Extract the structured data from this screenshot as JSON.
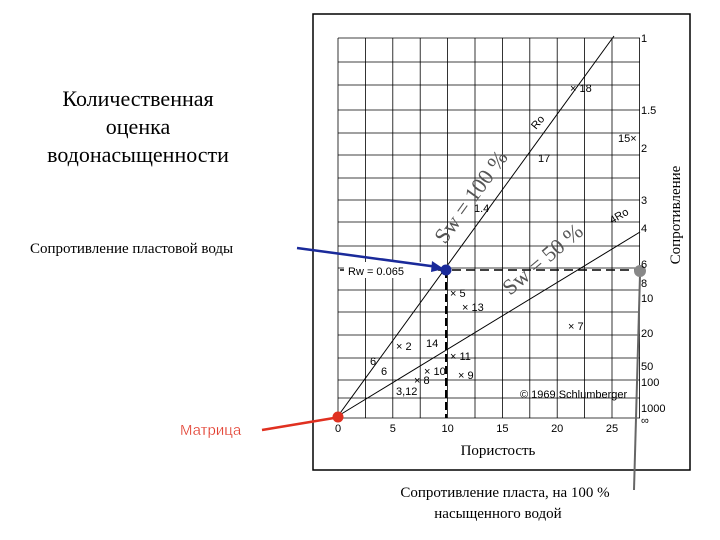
{
  "title": [
    "Количественная",
    "оценка",
    "водонасыщенности"
  ],
  "labels": {
    "rw_callout": "Сопротивление пластовой воды",
    "matrix": "Матрица",
    "x_axis": "Пористость",
    "y_axis": "Сопротивление",
    "bottom": [
      "Сопротивление пласта, на 100 %",
      "насыщенного водой"
    ]
  },
  "plot": {
    "x_ticks": [
      "0",
      "5",
      "10",
      "15",
      "20",
      "25"
    ],
    "y_ticks": [
      "1",
      "1.5",
      "2",
      "3",
      "4",
      "6",
      "8",
      "10",
      "20",
      "50",
      "100",
      "1000",
      "∞"
    ],
    "lines": [
      "Sw = 100 %",
      "Sw = 50 %"
    ],
    "rw": "Rw = 0.065",
    "ro": "Ro",
    "ro4": "4Ro",
    "ratio": "1.4",
    "copyright": "© 1969 Schlumberger",
    "points": [
      "× 18",
      "17",
      "15×",
      "× 5",
      "× 13",
      "× 7",
      "× 2",
      "14",
      "× 11",
      "× 10",
      "× 9",
      "6",
      "× 8",
      "3,12",
      "6"
    ]
  }
}
